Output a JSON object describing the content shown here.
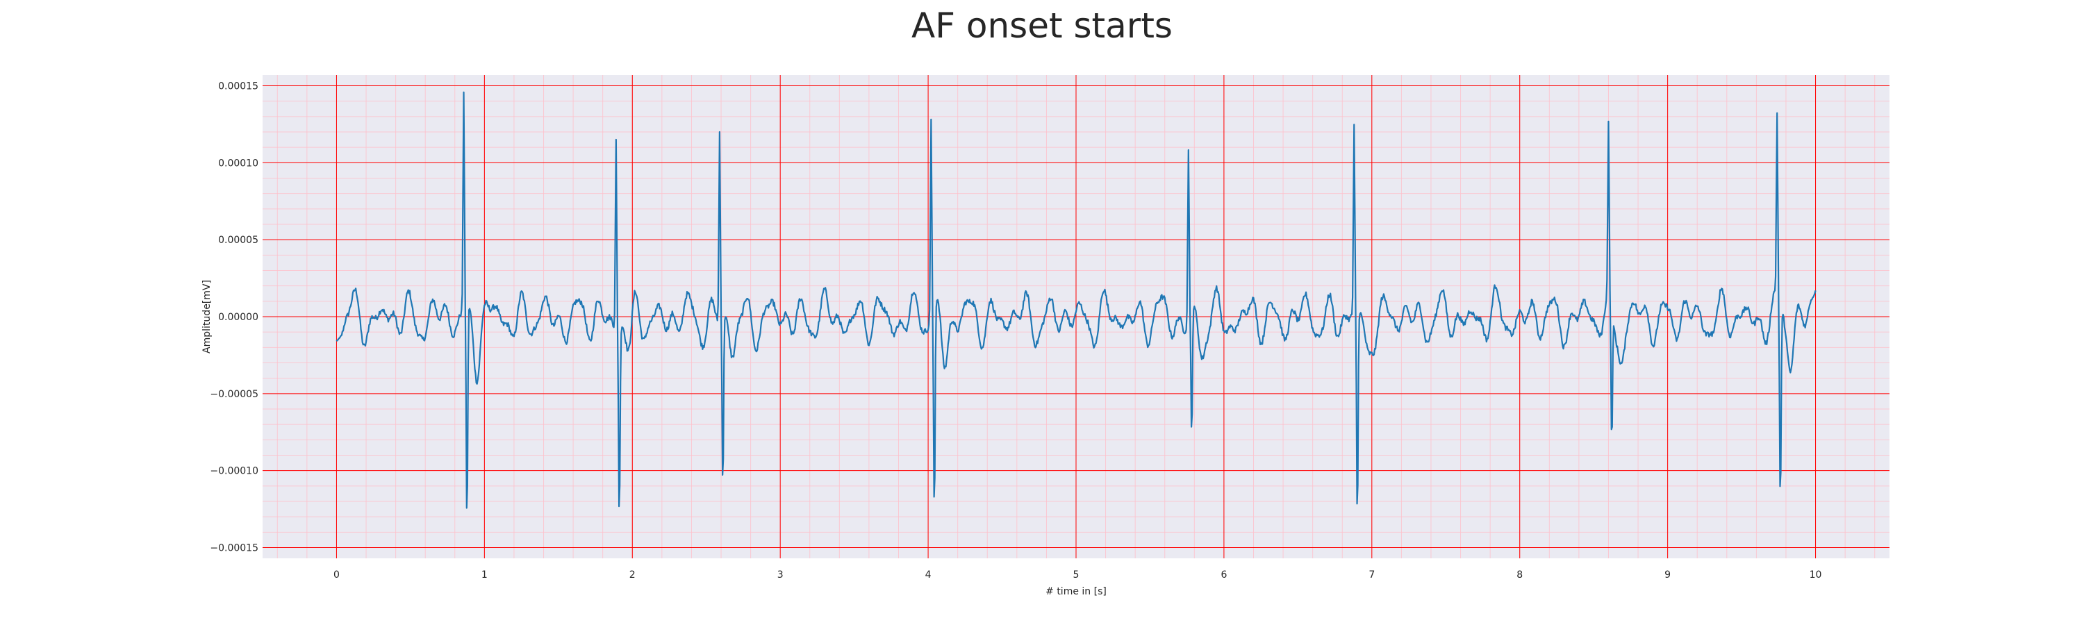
{
  "chart_data": {
    "type": "line",
    "title": "AF onset starts",
    "xlabel": "# time in [s]",
    "ylabel": "Amplitude[mV]",
    "xlim": [
      -0.5,
      10.5
    ],
    "ylim": [
      -0.000157,
      0.000157
    ],
    "x_ticks": [
      0,
      1,
      2,
      3,
      4,
      5,
      6,
      7,
      8,
      9,
      10
    ],
    "x_tick_labels": [
      "0",
      "1",
      "2",
      "3",
      "4",
      "5",
      "6",
      "7",
      "8",
      "9",
      "10"
    ],
    "y_ticks": [
      0.00015,
      0.0001,
      5e-05,
      0,
      -5e-05,
      -0.0001,
      -0.00015
    ],
    "y_tick_labels": [
      "0.00015",
      "0.00010",
      "0.00005",
      "0.00000",
      "−0.00005",
      "−0.00010",
      "−0.00015"
    ],
    "grid": true,
    "minor_grid": true,
    "colors": {
      "line": "#1f77b4",
      "background": "#eaeaf2",
      "major_grid": "#ff0000",
      "minor_grid": "#ffc0cb",
      "text": "#262626"
    },
    "series": [
      {
        "beats": [
          {
            "t": 0.86,
            "r": 0.000142,
            "s": -0.000143
          },
          {
            "t": 1.89,
            "r": 0.000123,
            "s": -0.000124
          },
          {
            "t": 2.59,
            "r": 0.000122,
            "s": -0.000113
          },
          {
            "t": 4.02,
            "r": 0.000132,
            "s": -0.000135
          },
          {
            "t": 5.76,
            "r": 0.00011,
            "s": -8.9e-05
          },
          {
            "t": 6.88,
            "r": 0.000118,
            "s": -0.000139
          },
          {
            "t": 8.6,
            "r": 0.000111,
            "s": -8.8e-05
          },
          {
            "t": 9.74,
            "r": 0.000119,
            "s": -0.000129
          }
        ],
        "baseline_range": [
          -3.5e-05,
          2e-05
        ],
        "start": [
          0.0,
          -1.6e-05
        ],
        "end": [
          10.0,
          1.7e-05
        ]
      }
    ]
  }
}
